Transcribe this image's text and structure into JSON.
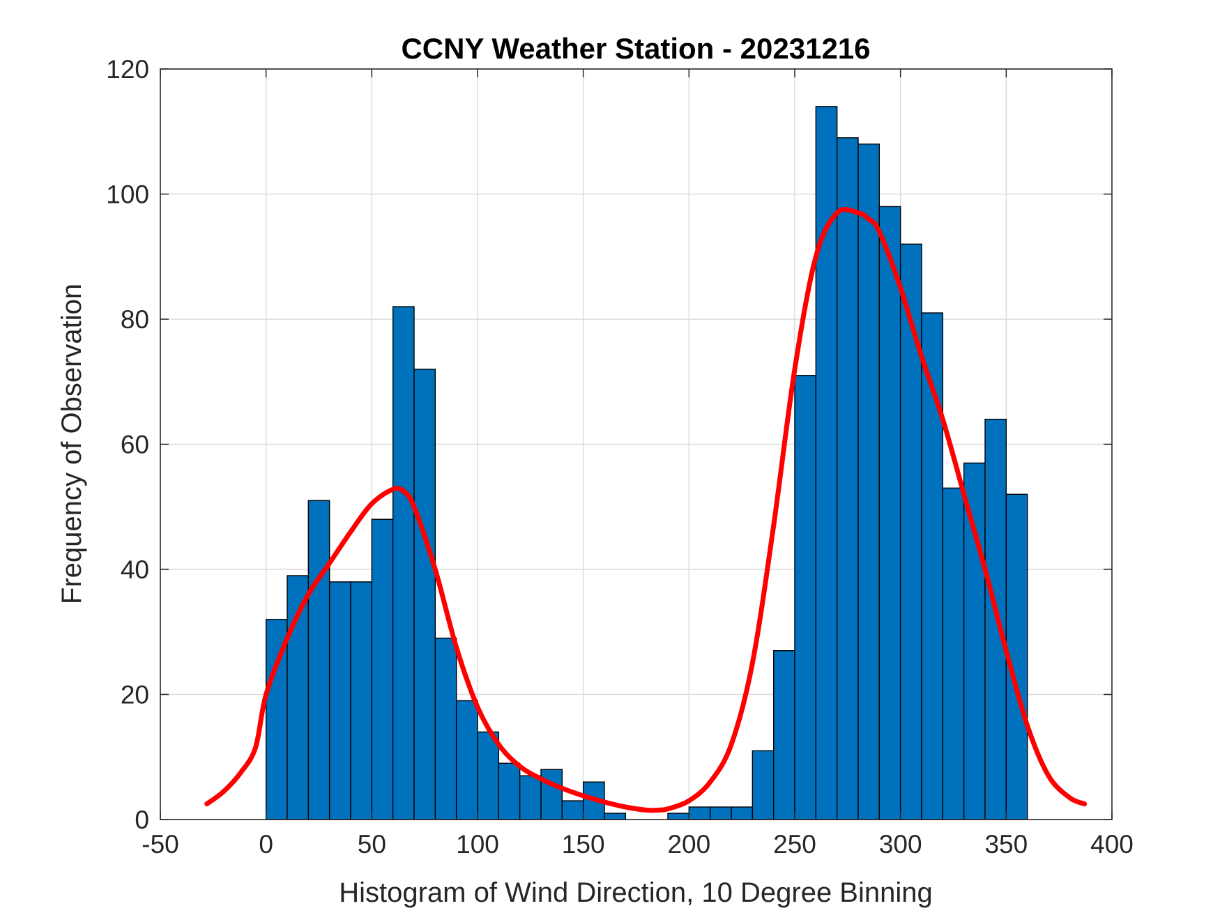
{
  "chart_data": {
    "type": "bar",
    "title": "CCNY Weather Station - 20231216",
    "xlabel": "Histogram of Wind Direction, 10 Degree Binning",
    "ylabel": "Frequency of Observation",
    "xlim": [
      -50,
      400
    ],
    "ylim": [
      0,
      120
    ],
    "xticks": [
      -50,
      0,
      50,
      100,
      150,
      200,
      250,
      300,
      350,
      400
    ],
    "yticks": [
      0,
      20,
      40,
      60,
      80,
      100,
      120
    ],
    "grid": true,
    "bin_width": 10,
    "bin_edges_start": 0,
    "bar_color": "#0072BD",
    "bar_edge_color": "#000000",
    "fit_color": "#FF0000",
    "values": [
      32,
      39,
      51,
      38,
      38,
      48,
      82,
      72,
      29,
      19,
      14,
      9,
      7,
      8,
      3,
      6,
      1,
      0,
      0,
      1,
      2,
      2,
      2,
      11,
      27,
      71,
      114,
      109,
      108,
      98,
      92,
      81,
      53,
      57,
      64,
      52
    ],
    "fit_curve": {
      "x": [
        -28,
        -20,
        -12,
        -5,
        0,
        10,
        20,
        30,
        40,
        50,
        60,
        65,
        70,
        80,
        90,
        100,
        110,
        120,
        130,
        140,
        150,
        160,
        170,
        180,
        185,
        190,
        200,
        210,
        220,
        230,
        240,
        250,
        260,
        270,
        280,
        285,
        290,
        300,
        310,
        320,
        330,
        340,
        350,
        360,
        370,
        380,
        387
      ],
      "y": [
        2.5,
        4.5,
        7.5,
        11.5,
        20,
        29,
        36,
        41,
        46,
        50.5,
        52.8,
        52.5,
        50,
        40,
        27.5,
        18,
        12,
        8.5,
        6.5,
        5,
        3.8,
        2.8,
        2,
        1.5,
        1.5,
        1.7,
        3,
        6,
        12,
        25,
        47,
        72,
        90,
        97,
        97,
        96,
        94,
        85,
        74,
        64,
        52,
        40,
        27,
        15,
        7,
        3.5,
        2.5
      ]
    }
  }
}
